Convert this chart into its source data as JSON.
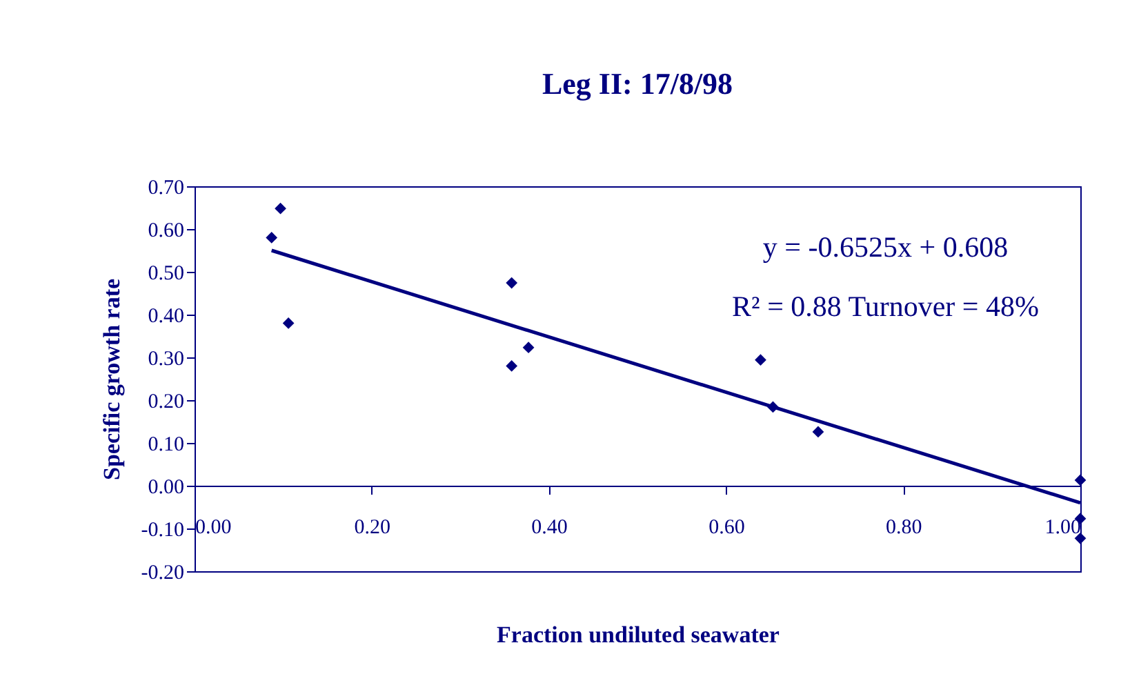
{
  "chart_data": {
    "type": "scatter",
    "title": "Leg II: 17/8/98",
    "xlabel": "Fraction undiluted seawater",
    "ylabel": "Specific growth rate",
    "x": [
      0.087,
      0.097,
      0.106,
      0.358,
      0.358,
      0.377,
      0.639,
      0.653,
      0.704,
      1.0,
      1.0,
      1.0
    ],
    "series": [
      {
        "type": "scatter",
        "color": "#000080",
        "marker": "diamond",
        "values": [
          0.58,
          0.648,
          0.38,
          0.474,
          0.28,
          0.323,
          0.294,
          0.184,
          0.126,
          0.013,
          -0.077,
          -0.123
        ]
      },
      {
        "type": "line",
        "color": "#000080",
        "line_style": "solid",
        "x": [
          0.087,
          1.0
        ],
        "values": [
          0.55,
          -0.04
        ]
      }
    ],
    "xlim": [
      0,
      1
    ],
    "ylim": [
      -0.2,
      0.7
    ],
    "xticks": [
      {
        "value": 0,
        "label": "0.00"
      },
      {
        "value": 0.2,
        "label": "0.20"
      },
      {
        "value": 0.4,
        "label": "0.40"
      },
      {
        "value": 0.6,
        "label": "0.60"
      },
      {
        "value": 0.8,
        "label": "0.80"
      },
      {
        "value": 1.0,
        "label": "1.00"
      }
    ],
    "yticks": [
      {
        "value": -0.2,
        "label": "-0.20"
      },
      {
        "value": -0.1,
        "label": "-0.10"
      },
      {
        "value": 0,
        "label": "0.00"
      },
      {
        "value": 0.1,
        "label": "0.10"
      },
      {
        "value": 0.2,
        "label": "0.20"
      },
      {
        "value": 0.3,
        "label": "0.30"
      },
      {
        "value": 0.4,
        "label": "0.40"
      },
      {
        "value": 0.5,
        "label": "0.50"
      },
      {
        "value": 0.6,
        "label": "0.60"
      },
      {
        "value": 0.7,
        "label": "0.70"
      }
    ],
    "annotations": [
      "y = -0.6525x + 0.608",
      "R² = 0.88 Turnover = 48%"
    ],
    "grid": false,
    "legend": false
  }
}
